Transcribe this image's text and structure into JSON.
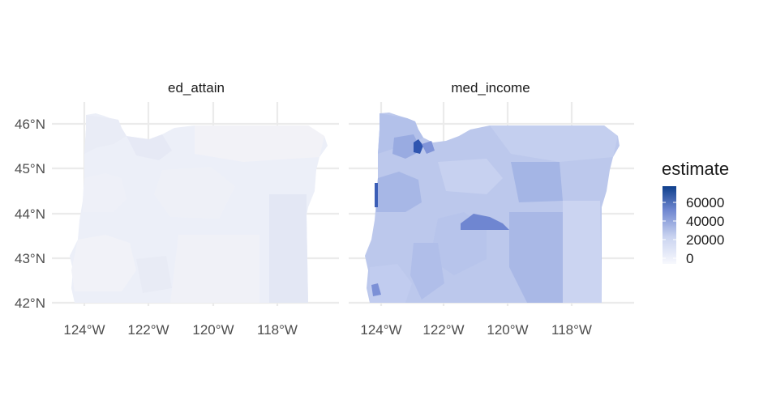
{
  "chart_data": {
    "type": "choropleth",
    "facets": [
      {
        "label": "ed_attain",
        "base_color": "#eceff8",
        "regions": [
          {
            "approx_estimate": 2000,
            "color": "#e9ecf6"
          },
          {
            "approx_estimate": 1500,
            "color": "#eef0f8"
          },
          {
            "approx_estimate": 1000,
            "color": "#f1f2f8"
          },
          {
            "approx_estimate": 2500,
            "color": "#e6e9f5"
          },
          {
            "approx_estimate": 800,
            "color": "#f2f2f7"
          },
          {
            "approx_estimate": 3000,
            "color": "#e3e7f4"
          }
        ]
      },
      {
        "label": "med_income",
        "base_color": "#bcc8ec",
        "regions": [
          {
            "approx_estimate": 30000,
            "color": "#b3c1ea"
          },
          {
            "approx_estimate": 26000,
            "color": "#c4cfef"
          },
          {
            "approx_estimate": 34000,
            "color": "#a7b7e6"
          },
          {
            "approx_estimate": 22000,
            "color": "#cbd4f1"
          },
          {
            "approx_estimate": 45000,
            "color": "#6f86d1"
          },
          {
            "approx_estimate": 60000,
            "color": "#2f55b0"
          },
          {
            "approx_estimate": 38000,
            "color": "#99abe1"
          }
        ]
      }
    ],
    "x_axis": {
      "ticks": [
        "124°W",
        "122°W",
        "120°W",
        "118°W"
      ]
    },
    "y_axis": {
      "ticks": [
        "46°N",
        "45°N",
        "44°N",
        "43°N",
        "42°N"
      ]
    },
    "legend": {
      "title": "estimate",
      "labels": [
        "60000",
        "40000",
        "20000",
        "0"
      ],
      "gradient_low": "#f7f8fd",
      "gradient_high": "#0e3f8c",
      "placement": "right"
    }
  }
}
